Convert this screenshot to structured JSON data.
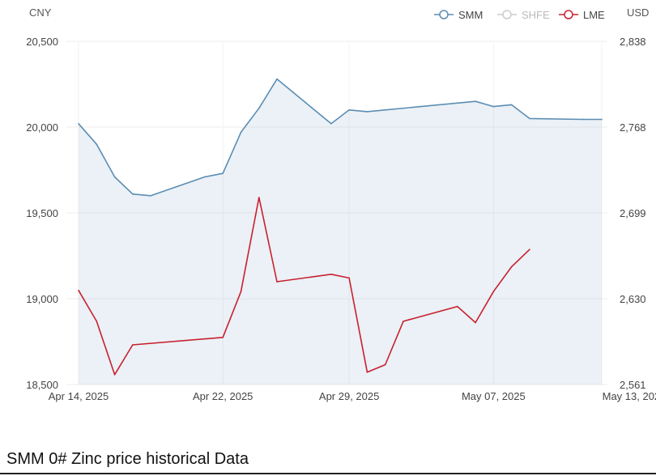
{
  "chart_data": {
    "type": "line",
    "title": "",
    "left_axis_unit": "CNY",
    "right_axis_unit": "USD",
    "ylim": [
      18500,
      20500
    ],
    "y_ticks": [
      "20,500",
      "20,000",
      "19,500",
      "19,000",
      "18,500"
    ],
    "y2lim": [
      2561,
      2838
    ],
    "y2_ticks": [
      "2,838",
      "2,768",
      "2,699",
      "2,630",
      "2,561"
    ],
    "x_range": [
      "2025-04-14",
      "2025-05-13"
    ],
    "x_ticks": [
      {
        "date": "2025-04-14",
        "label": "Apr 14, 2025"
      },
      {
        "date": "2025-04-22",
        "label": "Apr 22, 2025"
      },
      {
        "date": "2025-04-29",
        "label": "Apr 29, 2025"
      },
      {
        "date": "2025-05-07",
        "label": "May 07, 2025"
      },
      {
        "date": "2025-05-13",
        "label": "May 13, 2025"
      }
    ],
    "grid": true,
    "legend_position": "top-right",
    "series": [
      {
        "name": "SMM",
        "axis": "left",
        "color": "#5b8db3",
        "area": true,
        "visible": true,
        "points": [
          {
            "x": "2025-04-14",
            "y": 20020
          },
          {
            "x": "2025-04-15",
            "y": 19900
          },
          {
            "x": "2025-04-16",
            "y": 19710
          },
          {
            "x": "2025-04-17",
            "y": 19610
          },
          {
            "x": "2025-04-18",
            "y": 19600
          },
          {
            "x": "2025-04-21",
            "y": 19710
          },
          {
            "x": "2025-04-22",
            "y": 19730
          },
          {
            "x": "2025-04-23",
            "y": 19970
          },
          {
            "x": "2025-04-24",
            "y": 20110
          },
          {
            "x": "2025-04-25",
            "y": 20280
          },
          {
            "x": "2025-04-28",
            "y": 20020
          },
          {
            "x": "2025-04-29",
            "y": 20100
          },
          {
            "x": "2025-04-30",
            "y": 20090
          },
          {
            "x": "2025-05-06",
            "y": 20150
          },
          {
            "x": "2025-05-07",
            "y": 20120
          },
          {
            "x": "2025-05-08",
            "y": 20130
          },
          {
            "x": "2025-05-09",
            "y": 20050
          },
          {
            "x": "2025-05-12",
            "y": 20045
          },
          {
            "x": "2025-05-13",
            "y": 20045
          }
        ]
      },
      {
        "name": "SHFE",
        "axis": "left",
        "color": "#cccccc",
        "visible": false,
        "points": []
      },
      {
        "name": "LME",
        "axis": "right",
        "color": "#c8202f",
        "visible": true,
        "points": [
          {
            "x": "2025-04-14",
            "y": 2637
          },
          {
            "x": "2025-04-15",
            "y": 2612
          },
          {
            "x": "2025-04-16",
            "y": 2569
          },
          {
            "x": "2025-04-17",
            "y": 2593
          },
          {
            "x": "2025-04-22",
            "y": 2599
          },
          {
            "x": "2025-04-23",
            "y": 2636
          },
          {
            "x": "2025-04-24",
            "y": 2712
          },
          {
            "x": "2025-04-25",
            "y": 2644
          },
          {
            "x": "2025-04-28",
            "y": 2650
          },
          {
            "x": "2025-04-29",
            "y": 2647
          },
          {
            "x": "2025-04-30",
            "y": 2571
          },
          {
            "x": "2025-05-01",
            "y": 2577
          },
          {
            "x": "2025-05-02",
            "y": 2612
          },
          {
            "x": "2025-05-05",
            "y": 2624
          },
          {
            "x": "2025-05-06",
            "y": 2611
          },
          {
            "x": "2025-05-07",
            "y": 2636
          },
          {
            "x": "2025-05-08",
            "y": 2656
          },
          {
            "x": "2025-05-09",
            "y": 2670
          }
        ]
      }
    ]
  },
  "section": {
    "title": "SMM 0# Zinc price historical Data"
  }
}
